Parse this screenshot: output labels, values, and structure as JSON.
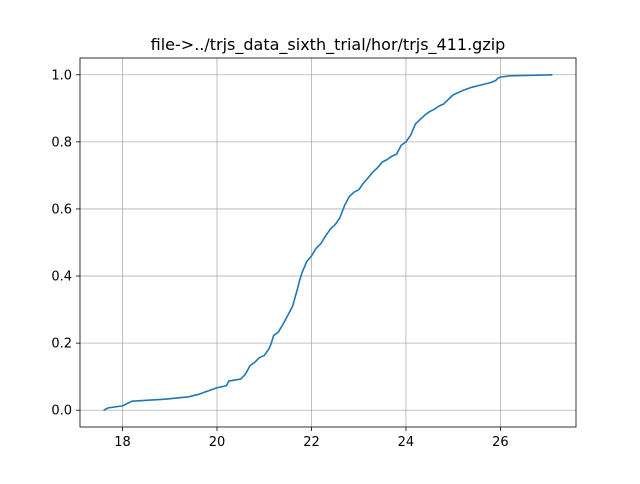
{
  "chart_data": {
    "type": "line",
    "title": "file->../trjs_data_sixth_trial/hor/trjs_411.gzip",
    "xlabel": "",
    "ylabel": "",
    "xlim": [
      17.1,
      27.6
    ],
    "ylim": [
      -0.05,
      1.05
    ],
    "xticks": [
      18,
      20,
      22,
      24,
      26
    ],
    "yticks": [
      0.0,
      0.2,
      0.4,
      0.6,
      0.8,
      1.0
    ],
    "xtick_labels": [
      "18",
      "20",
      "22",
      "24",
      "26"
    ],
    "ytick_labels": [
      "0.0",
      "0.2",
      "0.4",
      "0.6",
      "0.8",
      "1.0"
    ],
    "grid": true,
    "line_color": "#1f77b4",
    "series": [
      {
        "x": [
          17.6,
          17.7,
          18.0,
          18.1,
          18.2,
          18.9,
          19.4,
          19.6,
          19.8,
          20.0,
          20.2,
          20.25,
          20.5,
          20.6,
          20.7,
          20.8,
          20.9,
          21.0,
          21.1,
          21.15,
          21.2,
          21.3,
          21.4,
          21.5,
          21.6,
          21.7,
          21.75,
          21.8,
          21.9,
          22.0,
          22.1,
          22.2,
          22.3,
          22.4,
          22.5,
          22.6,
          22.7,
          22.8,
          22.9,
          23.0,
          23.1,
          23.2,
          23.3,
          23.4,
          23.5,
          23.6,
          23.7,
          23.8,
          23.9,
          24.0,
          24.1,
          24.2,
          24.3,
          24.35,
          24.4,
          24.5,
          24.6,
          24.7,
          24.8,
          24.9,
          25.0,
          25.2,
          25.4,
          25.6,
          25.8,
          25.9,
          25.95,
          26.0,
          26.2,
          27.1
        ],
        "y": [
          0.0,
          0.007,
          0.013,
          0.02,
          0.027,
          0.033,
          0.04,
          0.047,
          0.057,
          0.067,
          0.073,
          0.087,
          0.093,
          0.107,
          0.133,
          0.143,
          0.157,
          0.163,
          0.183,
          0.2,
          0.223,
          0.233,
          0.257,
          0.283,
          0.31,
          0.36,
          0.387,
          0.41,
          0.443,
          0.46,
          0.483,
          0.497,
          0.52,
          0.54,
          0.553,
          0.573,
          0.61,
          0.637,
          0.65,
          0.657,
          0.677,
          0.693,
          0.71,
          0.723,
          0.74,
          0.747,
          0.757,
          0.763,
          0.79,
          0.8,
          0.82,
          0.853,
          0.867,
          0.873,
          0.88,
          0.89,
          0.897,
          0.907,
          0.913,
          0.927,
          0.94,
          0.953,
          0.963,
          0.97,
          0.977,
          0.983,
          0.99,
          0.993,
          0.997,
          1.0
        ]
      }
    ]
  }
}
